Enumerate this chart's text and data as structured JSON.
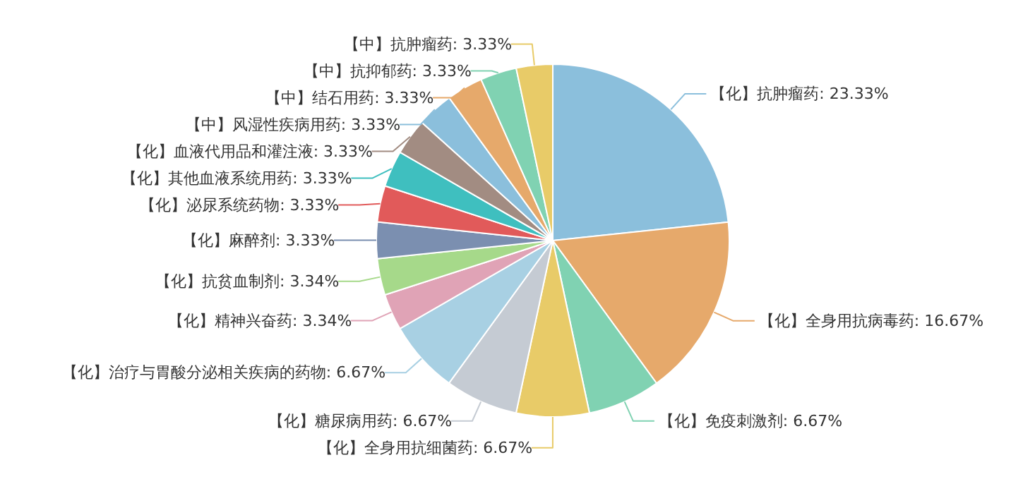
{
  "chart_data": {
    "type": "pie",
    "value_labels": [
      ": 23.33%",
      ": 16.67%",
      ": 6.67%",
      ": 6.67%",
      ": 6.67%",
      ": 6.67%",
      ": 3.34%",
      ": 3.34%",
      ": 3.33%",
      ": 3.33%",
      ": 3.33%",
      ": 3.33%",
      ": 3.33%",
      ": 3.33%",
      ": 3.33%",
      ": 3.33%"
    ],
    "categories": [
      "【化】抗肿瘤药",
      "【化】全身用抗病毒药",
      "【化】免疫刺激剂",
      "【化】全身用抗细菌药",
      "【化】糖尿病用药",
      "【化】治疗与胃酸分泌相关疾病的药物",
      "【化】精神兴奋药",
      "【化】抗贫血制剂",
      "【化】麻醉剂",
      "【化】泌尿系统药物",
      "【化】其他血液系统用药",
      "【化】血液代用品和灌注液",
      "【中】风湿性疾病用药",
      "【中】结石用药",
      "【中】抗抑郁药",
      "【中】抗肿瘤药"
    ],
    "values": [
      23.33,
      16.67,
      6.67,
      6.67,
      6.67,
      6.67,
      3.34,
      3.34,
      3.33,
      3.33,
      3.33,
      3.33,
      3.33,
      3.33,
      3.33,
      3.33
    ],
    "colors": [
      "#8bbfdc",
      "#e6a96b",
      "#80d2b2",
      "#e8cb68",
      "#c5cbd3",
      "#a8d0e3",
      "#e0a3b6",
      "#a6d98a",
      "#7b8fb0",
      "#e15a5a",
      "#3fbfbf",
      "#a28c82",
      "#8bbfdc",
      "#e6a96b",
      "#80d2b2",
      "#e8cb68"
    ]
  }
}
